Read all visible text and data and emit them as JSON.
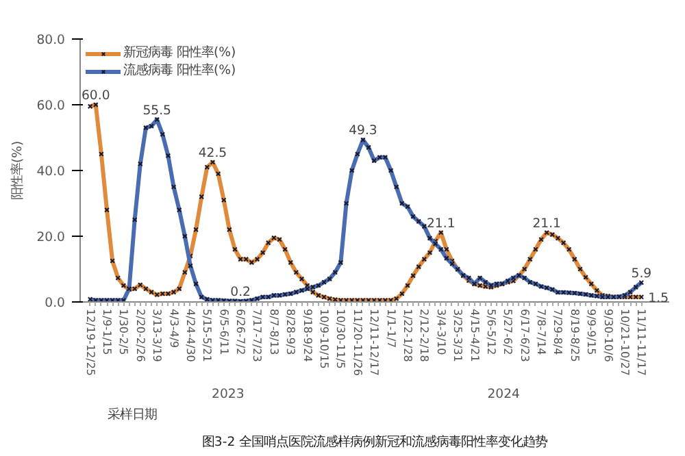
{
  "chart_data": {
    "type": "line",
    "categories": [
      "12/19-12/25",
      null,
      null,
      "1/9-1/15",
      null,
      null,
      "1/30-2/5",
      null,
      null,
      "2/20-2/26",
      null,
      null,
      "3/13-3/19",
      null,
      null,
      "4/3-4/9",
      null,
      null,
      "4/24-4/30",
      null,
      null,
      "5/15-5/21",
      null,
      null,
      "6/5-6/11",
      null,
      null,
      "6/26-7/2",
      null,
      null,
      "7/17-7/23",
      null,
      null,
      "8/7-8/13",
      null,
      null,
      "8/28-9/3",
      null,
      null,
      "9/18-9/24",
      null,
      null,
      "10/9-10/15",
      null,
      null,
      "10/30-11/5",
      null,
      null,
      "11/20-11/26",
      null,
      null,
      "12/11-12/17",
      null,
      null,
      "1/1-1/7",
      null,
      null,
      "1/22-1/28",
      null,
      null,
      "2/12-2/18",
      null,
      null,
      "3/4-3/10",
      null,
      null,
      "3/25-3/31",
      null,
      null,
      "4/15-4/21",
      null,
      null,
      "5/6-5/12",
      null,
      null,
      "5/27-6/2",
      null,
      null,
      "6/17-6/23",
      null,
      null,
      "7/8-7/14",
      null,
      null,
      "7/29-8/4",
      null,
      null,
      "8/19-8/25",
      null,
      null,
      "9/9-9/15",
      null,
      null,
      "9/30-10/6",
      null,
      null,
      "10/21-10/27",
      null,
      null,
      "11/11-11/17"
    ],
    "series": [
      {
        "name": "新冠病毒 阳性率(%)",
        "color": "#e08a3c",
        "values": [
          59.5,
          60.0,
          45,
          28,
          12.5,
          7.3,
          5,
          3.8,
          4,
          5.2,
          4,
          3,
          2.2,
          2.5,
          2.5,
          3,
          4,
          9,
          14,
          22,
          32,
          41,
          42.5,
          39,
          31,
          22,
          16,
          13,
          13,
          12,
          13,
          15,
          18,
          19.5,
          19,
          16,
          12,
          9,
          7,
          5,
          3,
          2,
          1.5,
          1,
          0.7,
          0.5,
          0.5,
          0.5,
          0.5,
          0.5,
          0.5,
          0.5,
          0.5,
          0.5,
          0.5,
          1,
          2.5,
          5,
          8,
          10.7,
          13,
          15,
          18.5,
          21.1,
          16,
          12.5,
          10,
          8,
          6.5,
          5.5,
          5,
          4.7,
          4.5,
          5,
          5.5,
          6,
          6.4,
          8,
          10,
          13,
          16,
          19,
          21.1,
          20.5,
          19.4,
          18,
          16,
          13,
          10,
          7.5,
          5.5,
          3.5,
          2,
          1.8,
          1.5,
          1.5,
          1.5,
          1.5,
          1.5,
          1.5
        ],
        "value_labels": [
          null,
          "60.0",
          null,
          null,
          null,
          null,
          null,
          null,
          null,
          null,
          null,
          null,
          null,
          null,
          null,
          null,
          null,
          null,
          null,
          null,
          null,
          null,
          "42.5",
          null,
          null,
          null,
          null,
          null,
          null,
          null,
          null,
          null,
          null,
          null,
          null,
          null,
          null,
          null,
          null,
          null,
          null,
          null,
          null,
          null,
          null,
          null,
          null,
          null,
          null,
          null,
          null,
          null,
          null,
          null,
          null,
          null,
          null,
          null,
          null,
          null,
          null,
          null,
          null,
          "21.1",
          null,
          null,
          null,
          null,
          null,
          null,
          null,
          null,
          null,
          null,
          null,
          null,
          null,
          null,
          null,
          null,
          null,
          null,
          "21.1",
          null,
          null,
          null,
          null,
          null,
          null,
          null,
          null,
          null,
          null,
          null,
          null,
          null,
          null,
          null,
          null,
          "1.5"
        ]
      },
      {
        "name": "流感病毒 阳性率(%)",
        "color": "#4a6cb0",
        "values": [
          0.8,
          0.5,
          0.5,
          0.5,
          0.5,
          0.5,
          0.5,
          4,
          25,
          42,
          53,
          53.5,
          55.5,
          51,
          44.5,
          35,
          28,
          20,
          11,
          5.5,
          1.5,
          0.8,
          0.5,
          0.5,
          0.4,
          0.3,
          0.3,
          0.2,
          0.3,
          0.5,
          1,
          1.5,
          1.5,
          2,
          2,
          2.3,
          2.5,
          3,
          3.5,
          4,
          4.5,
          5,
          6,
          7,
          9,
          12,
          30,
          40,
          45,
          49.3,
          47,
          43,
          44,
          44,
          40,
          35,
          30,
          29,
          26,
          24.5,
          23,
          19.4,
          17.7,
          16,
          13.3,
          11.6,
          9.9,
          8.1,
          7.3,
          5.5,
          7.3,
          6,
          5,
          5.5,
          5.5,
          6.4,
          7.3,
          8.1,
          7.3,
          6,
          5.5,
          4.7,
          4.3,
          3.8,
          2.9,
          2.9,
          2.8,
          2.7,
          2.5,
          2.3,
          2,
          1.8,
          1.5,
          1.5,
          1.5,
          1.6,
          2,
          3,
          4.5,
          5.9
        ],
        "value_labels": [
          null,
          null,
          null,
          null,
          null,
          null,
          null,
          null,
          null,
          null,
          null,
          null,
          "55.5",
          null,
          null,
          null,
          null,
          null,
          null,
          null,
          null,
          null,
          null,
          null,
          null,
          null,
          null,
          "0.2",
          null,
          null,
          null,
          null,
          null,
          null,
          null,
          null,
          null,
          null,
          null,
          null,
          null,
          null,
          null,
          null,
          null,
          null,
          null,
          null,
          null,
          "49.3",
          null,
          null,
          null,
          null,
          null,
          null,
          null,
          null,
          null,
          null,
          null,
          null,
          null,
          null,
          null,
          null,
          null,
          null,
          null,
          null,
          null,
          null,
          null,
          null,
          null,
          null,
          null,
          null,
          null,
          null,
          null,
          null,
          null,
          null,
          null,
          null,
          null,
          null,
          null,
          null,
          null,
          null,
          null,
          null,
          null,
          null,
          null,
          null,
          null,
          "5.9"
        ]
      }
    ],
    "ylim": [
      0,
      80
    ],
    "yticks": [
      {
        "value": 0,
        "label": "0.0"
      },
      {
        "value": 20,
        "label": "20.0"
      },
      {
        "value": 40,
        "label": "40.0"
      },
      {
        "value": 60,
        "label": "60.0"
      },
      {
        "value": 80,
        "label": "80.0"
      }
    ],
    "ylabel": "阳性率(%)",
    "xlabel": "采样日期",
    "annotations": [
      "2023",
      "2024",
      "图3-2 全国哨点医院流感样病例新冠和流感病毒阳性率变化趋势"
    ],
    "legend": "top left",
    "grid": false,
    "marker": "cross",
    "line_style": "solid"
  }
}
